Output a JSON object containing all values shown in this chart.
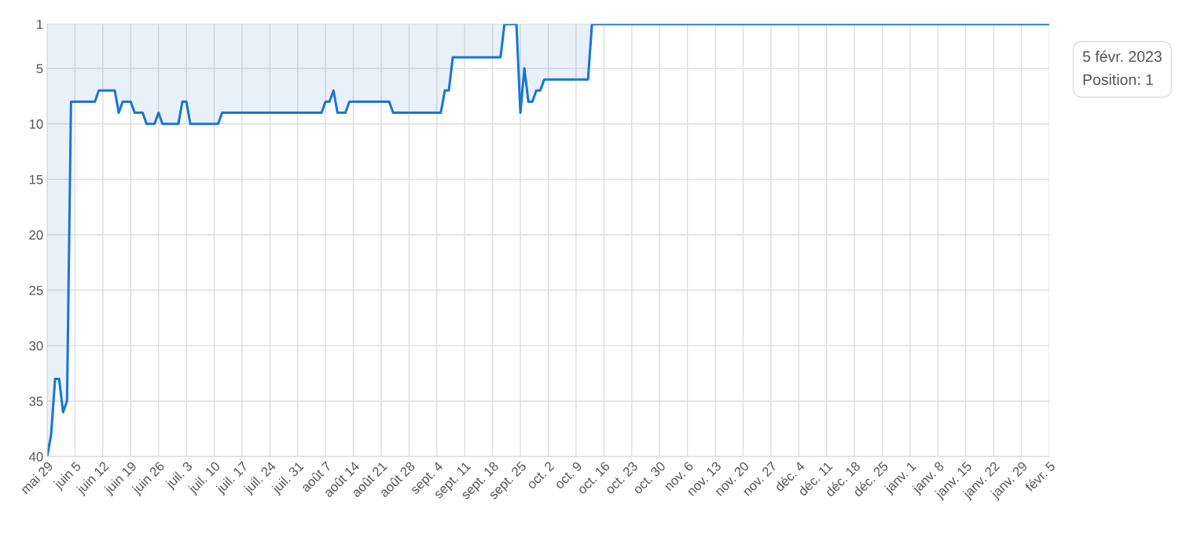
{
  "chart_data": {
    "type": "area",
    "x": [
      "2022-05-29",
      "2022-05-30",
      "2022-05-31",
      "2022-06-01",
      "2022-06-02",
      "2022-06-03",
      "2022-06-04",
      "2022-06-10",
      "2022-06-11",
      "2022-06-15",
      "2022-06-16",
      "2022-06-17",
      "2022-06-19",
      "2022-06-20",
      "2022-06-22",
      "2022-06-23",
      "2022-06-25",
      "2022-06-26",
      "2022-06-27",
      "2022-07-01",
      "2022-07-02",
      "2022-07-03",
      "2022-07-04",
      "2022-07-11",
      "2022-07-12",
      "2022-08-06",
      "2022-08-07",
      "2022-08-08",
      "2022-08-09",
      "2022-08-10",
      "2022-08-12",
      "2022-08-13",
      "2022-08-23",
      "2022-08-24",
      "2022-09-05",
      "2022-09-06",
      "2022-09-07",
      "2022-09-08",
      "2022-09-20",
      "2022-09-21",
      "2022-09-24",
      "2022-09-25",
      "2022-09-26",
      "2022-09-27",
      "2022-09-28",
      "2022-09-29",
      "2022-09-30",
      "2022-10-01",
      "2022-10-12",
      "2022-10-13",
      "2023-02-05"
    ],
    "series": [
      {
        "color": "#1976d2",
        "values": [
          40,
          38,
          33,
          33,
          36,
          35,
          8,
          8,
          7,
          7,
          9,
          8,
          8,
          9,
          9,
          10,
          10,
          9,
          10,
          10,
          8,
          8,
          10,
          10,
          9,
          9,
          8,
          8,
          7,
          9,
          9,
          8,
          8,
          9,
          9,
          7,
          7,
          4,
          4,
          1,
          1,
          9,
          5,
          8,
          8,
          7,
          7,
          6,
          6,
          1,
          1
        ]
      }
    ],
    "ylim": [
      40,
      1
    ],
    "yticks": [
      1,
      5,
      10,
      15,
      20,
      25,
      30,
      35,
      40
    ],
    "xlim": [
      "2022-05-29",
      "2023-02-05"
    ],
    "xticks": [
      {
        "value": "2022-05-29",
        "label": "mai 29"
      },
      {
        "value": "2022-06-05",
        "label": "juin 5"
      },
      {
        "value": "2022-06-12",
        "label": "juin 12"
      },
      {
        "value": "2022-06-19",
        "label": "juin 19"
      },
      {
        "value": "2022-06-26",
        "label": "juin 26"
      },
      {
        "value": "2022-07-03",
        "label": "juil. 3"
      },
      {
        "value": "2022-07-10",
        "label": "juil. 10"
      },
      {
        "value": "2022-07-17",
        "label": "juil. 17"
      },
      {
        "value": "2022-07-24",
        "label": "juil. 24"
      },
      {
        "value": "2022-07-31",
        "label": "juil. 31"
      },
      {
        "value": "2022-08-07",
        "label": "août 7"
      },
      {
        "value": "2022-08-14",
        "label": "août 14"
      },
      {
        "value": "2022-08-21",
        "label": "août 21"
      },
      {
        "value": "2022-08-28",
        "label": "août 28"
      },
      {
        "value": "2022-09-04",
        "label": "sept. 4"
      },
      {
        "value": "2022-09-11",
        "label": "sept. 11"
      },
      {
        "value": "2022-09-18",
        "label": "sept. 18"
      },
      {
        "value": "2022-09-25",
        "label": "sept. 25"
      },
      {
        "value": "2022-10-02",
        "label": "oct. 2"
      },
      {
        "value": "2022-10-09",
        "label": "oct. 9"
      },
      {
        "value": "2022-10-16",
        "label": "oct. 16"
      },
      {
        "value": "2022-10-23",
        "label": "oct. 23"
      },
      {
        "value": "2022-10-30",
        "label": "oct. 30"
      },
      {
        "value": "2022-11-06",
        "label": "nov. 6"
      },
      {
        "value": "2022-11-13",
        "label": "nov. 13"
      },
      {
        "value": "2022-11-20",
        "label": "nov. 20"
      },
      {
        "value": "2022-11-27",
        "label": "nov. 27"
      },
      {
        "value": "2022-12-04",
        "label": "déc. 4"
      },
      {
        "value": "2022-12-11",
        "label": "déc. 11"
      },
      {
        "value": "2022-12-18",
        "label": "déc. 18"
      },
      {
        "value": "2022-12-25",
        "label": "déc. 25"
      },
      {
        "value": "2023-01-01",
        "label": "janv. 1"
      },
      {
        "value": "2023-01-08",
        "label": "janv. 8"
      },
      {
        "value": "2023-01-15",
        "label": "janv. 15"
      },
      {
        "value": "2023-01-22",
        "label": "janv. 22"
      },
      {
        "value": "2023-01-29",
        "label": "janv. 29"
      },
      {
        "value": "2023-02-05",
        "label": "févr. 5"
      }
    ],
    "grid": true,
    "annotations": [
      "5 févr. 2023\nPosition: 1"
    ]
  }
}
